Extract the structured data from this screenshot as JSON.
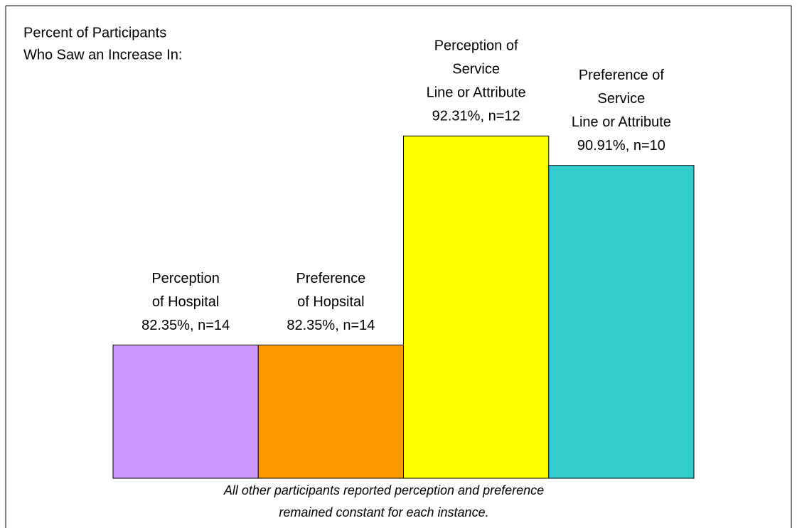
{
  "chart_data": {
    "type": "bar",
    "title": [
      "Percent of Participants",
      "Who Saw an Increase In:"
    ],
    "categories": [
      [
        "Perception",
        "of Hospital"
      ],
      [
        "Preference",
        "of Hopsital"
      ],
      [
        "Perception of",
        "Service",
        "Line or Attribute"
      ],
      [
        "Preference of",
        "Service",
        "Line or Attribute"
      ]
    ],
    "values": [
      82.35,
      82.35,
      92.31,
      90.91
    ],
    "value_labels": [
      "82.35%, n=14",
      "82.35%, n=14",
      "92.31%, n=12",
      "90.91%, n=10"
    ],
    "colors": [
      "#cc99ff",
      "#ff9900",
      "#ffff00",
      "#33cccc"
    ],
    "ylim": [
      76,
      93
    ],
    "footnote": [
      "All other participants reported perception and preference",
      "remained constant for each instance."
    ]
  }
}
